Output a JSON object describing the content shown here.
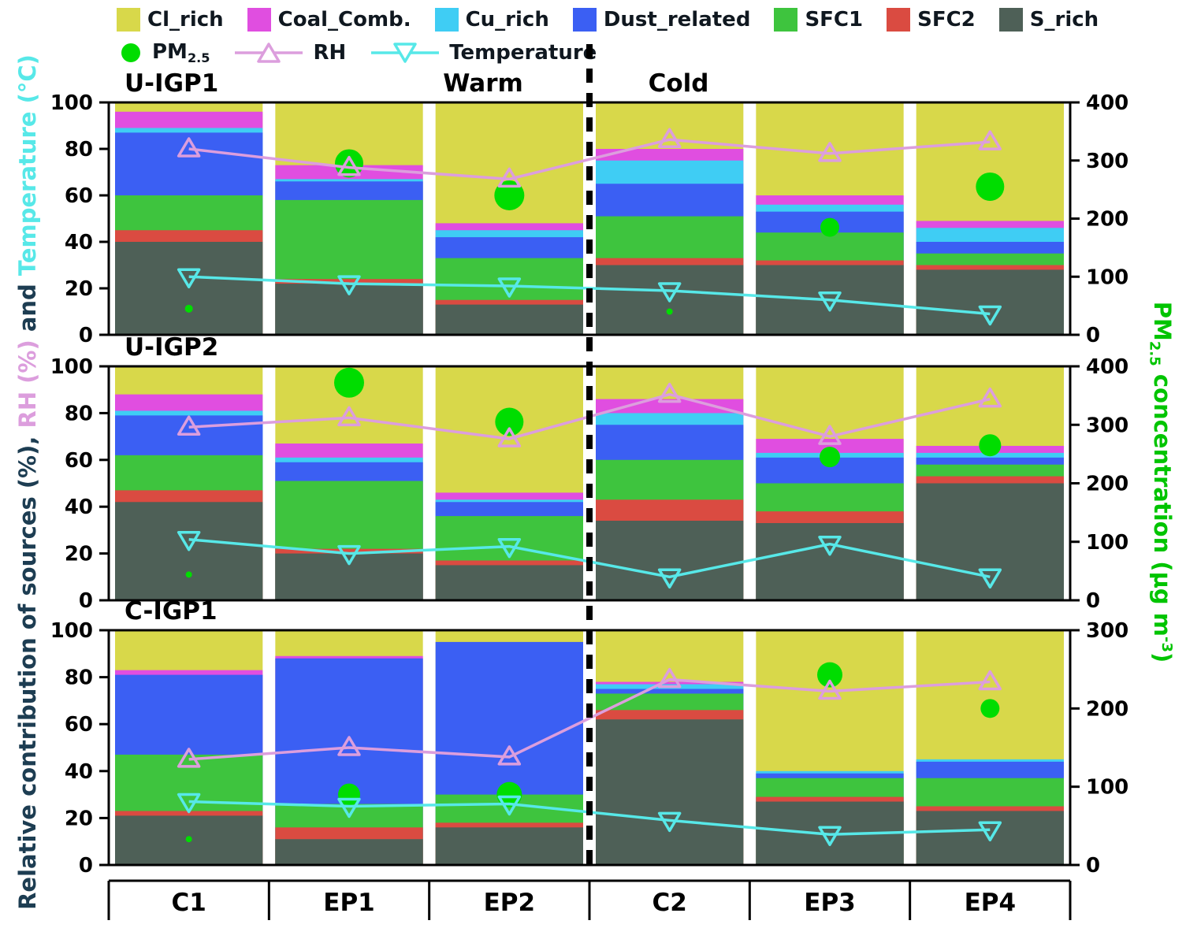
{
  "header": {
    "warm_label": "Warm",
    "cold_label": "Cold"
  },
  "legend": {
    "sources_order": [
      "Cl_rich",
      "Coal_Comb.",
      "Cu_rich",
      "Dust_related",
      "SFC1",
      "SFC2",
      "S_rich"
    ],
    "pm_label_parts": [
      {
        "t": "PM"
      },
      {
        "t": "2.5",
        "s": "sub"
      }
    ],
    "rh_label": "RH",
    "temp_label": "Temperature"
  },
  "axis": {
    "left_label_parts": [
      {
        "t": "Relative contribution of sources (%), ",
        "color": "#1d3d52"
      },
      {
        "t": "RH (%)",
        "color": "#dc9edd"
      },
      {
        "t": " and ",
        "color": "#1d3d52"
      },
      {
        "t": "Temperature (°C)",
        "color": "#57e8e8"
      }
    ],
    "right_label_parts": [
      {
        "t": "PM"
      },
      {
        "t": "2.5",
        "s": "sub"
      },
      {
        "t": " concentration (µg m"
      },
      {
        "t": "-3",
        "s": "sup"
      },
      {
        "t": ")"
      }
    ],
    "left_min": 0,
    "left_max": 100,
    "left_step": 20,
    "right_step": 100
  },
  "style": {
    "pm25_color": "#00dd00",
    "rh_color": "#dc9edd",
    "temp_color": "#57e8e8",
    "right_label_color": "#00c400",
    "divider_color": "#000000"
  },
  "chart_data": {
    "type": "stacked-bar+line+scatter",
    "categories": [
      "C1",
      "EP1",
      "EP2",
      "C2",
      "EP3",
      "EP4"
    ],
    "series": [
      {
        "name": "S_rich",
        "color": "#4e6057"
      },
      {
        "name": "SFC2",
        "color": "#da4b41"
      },
      {
        "name": "SFC1",
        "color": "#3ec43e"
      },
      {
        "name": "Dust_related",
        "color": "#3b5ff3"
      },
      {
        "name": "Cu_rich",
        "color": "#3fcdf4"
      },
      {
        "name": "Coal_Comb.",
        "color": "#e04ee0"
      },
      {
        "name": "Cl_rich",
        "color": "#d8d84a"
      }
    ],
    "panels": [
      {
        "title": "U-IGP1",
        "right_max": 400,
        "stacks": {
          "S_rich": [
            40,
            22,
            13,
            30,
            30,
            28
          ],
          "SFC2": [
            5,
            2,
            2,
            3,
            2,
            2
          ],
          "SFC1": [
            15,
            34,
            18,
            18,
            12,
            5
          ],
          "Dust_related": [
            27,
            8,
            9,
            14,
            9,
            5
          ],
          "Cu_rich": [
            2,
            1,
            3,
            10,
            3,
            6
          ],
          "Coal_Comb.": [
            7,
            6,
            3,
            5,
            4,
            3
          ],
          "Cl_rich": [
            4,
            27,
            52,
            20,
            40,
            51
          ]
        },
        "rh_pct": [
          80,
          72,
          67,
          84,
          78,
          83
        ],
        "temperature_c": [
          25,
          22,
          21,
          19,
          15,
          9
        ],
        "pm25_ugm3": [
          45,
          295,
          240,
          40,
          185,
          255
        ],
        "pm25_marker_r": [
          5,
          18,
          19,
          4,
          12,
          18
        ]
      },
      {
        "title": "U-IGP2",
        "right_max": 400,
        "stacks": {
          "S_rich": [
            42,
            20,
            15,
            34,
            33,
            50
          ],
          "SFC2": [
            5,
            2,
            2,
            9,
            5,
            3
          ],
          "SFC1": [
            15,
            29,
            19,
            17,
            12,
            5
          ],
          "Dust_related": [
            17,
            8,
            6,
            15,
            11,
            3
          ],
          "Cu_rich": [
            2,
            2,
            1,
            5,
            2,
            2
          ],
          "Coal_Comb.": [
            7,
            6,
            3,
            6,
            6,
            3
          ],
          "Cl_rich": [
            12,
            33,
            54,
            14,
            31,
            34
          ]
        },
        "rh_pct": [
          74,
          78,
          69,
          88,
          70,
          86
        ],
        "temperature_c": [
          26,
          20,
          23,
          10,
          24,
          10
        ],
        "pm25_ugm3": [
          44,
          372,
          305,
          null,
          245,
          265
        ],
        "pm25_marker_r": [
          4,
          19,
          18,
          0,
          13,
          14
        ]
      },
      {
        "title": "C-IGP1",
        "right_max": 300,
        "stacks": {
          "S_rich": [
            21,
            11,
            16,
            62,
            27,
            23
          ],
          "SFC2": [
            2,
            5,
            2,
            4,
            2,
            2
          ],
          "SFC1": [
            24,
            10,
            12,
            7,
            8,
            12
          ],
          "Dust_related": [
            34,
            62,
            65,
            2,
            2,
            7
          ],
          "Cu_rich": [
            0,
            0,
            0,
            2,
            1,
            1
          ],
          "Coal_Comb.": [
            2,
            1,
            0,
            1,
            0,
            0
          ],
          "Cl_rich": [
            17,
            11,
            5,
            22,
            60,
            55
          ]
        },
        "rh_pct": [
          45,
          50,
          46,
          79,
          74,
          78
        ],
        "temperature_c": [
          27,
          25,
          26,
          19,
          13,
          15
        ],
        "pm25_ugm3": [
          33,
          90,
          90,
          null,
          243,
          200
        ],
        "pm25_marker_r": [
          4,
          14,
          16,
          0,
          16,
          12
        ]
      }
    ]
  }
}
